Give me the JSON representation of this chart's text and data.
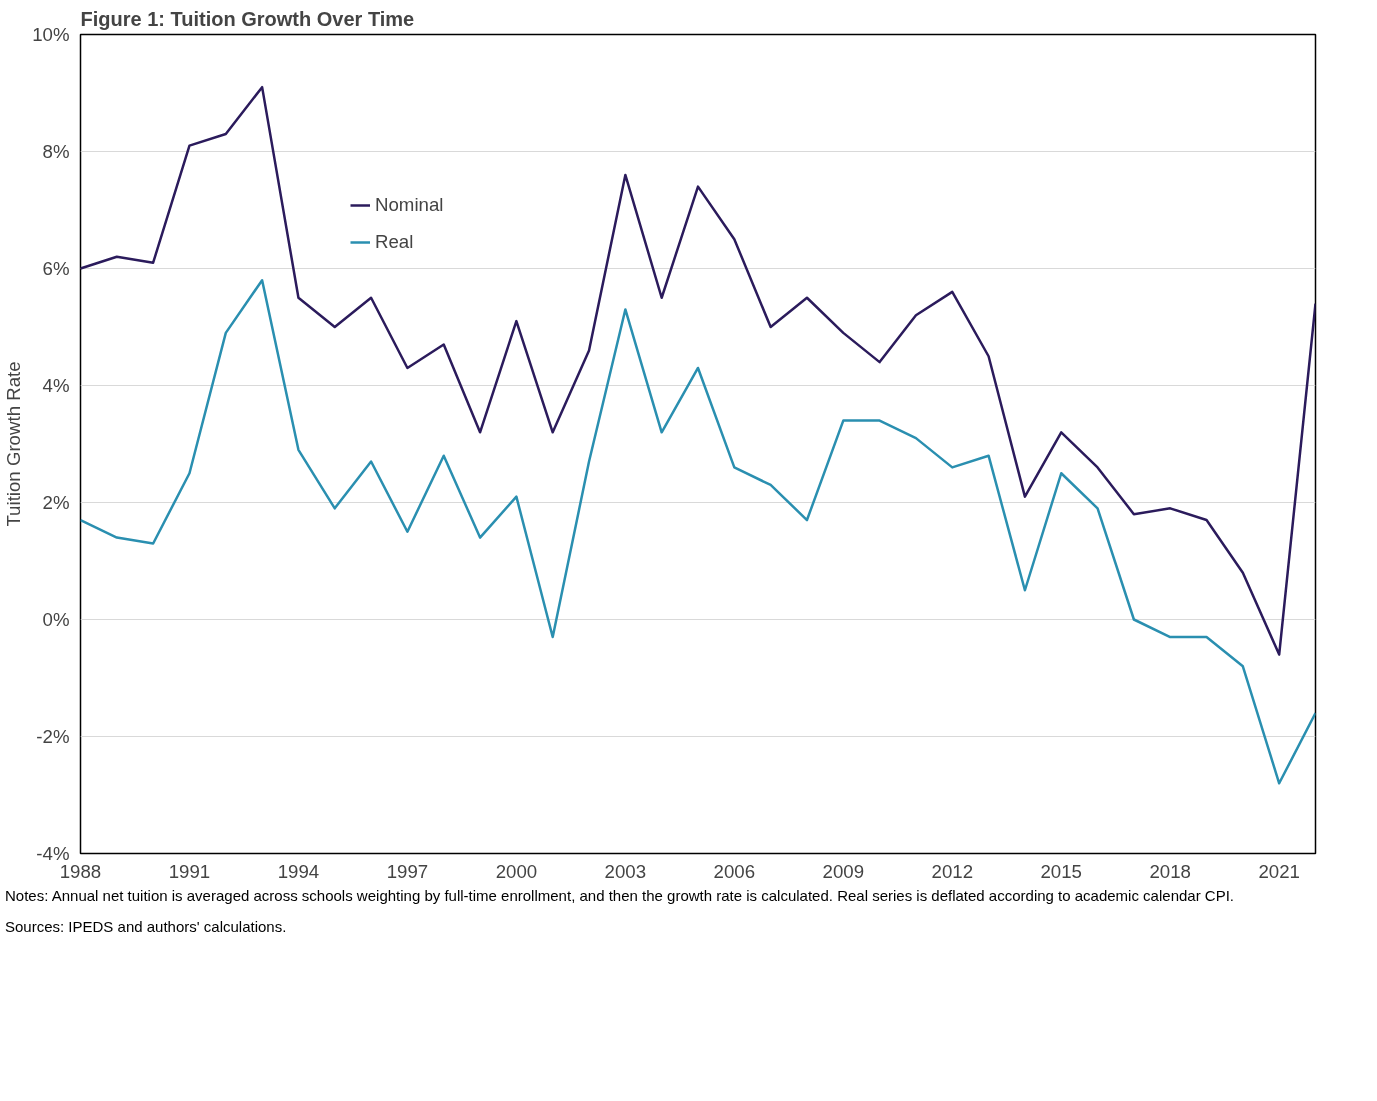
{
  "chart_data": {
    "type": "line",
    "title": "Figure 1: Tuition Growth Over Time",
    "ylabel": "Tuition Growth Rate",
    "x": [
      1988,
      1989,
      1990,
      1991,
      1992,
      1993,
      1994,
      1995,
      1996,
      1997,
      1998,
      1999,
      2000,
      2001,
      2002,
      2003,
      2004,
      2005,
      2006,
      2007,
      2008,
      2009,
      2010,
      2011,
      2012,
      2013,
      2014,
      2015,
      2016,
      2017,
      2018,
      2019,
      2020,
      2021,
      2022
    ],
    "series": [
      {
        "name": "Nominal",
        "color": "#2b1b5c",
        "values": [
          6.0,
          6.2,
          6.1,
          8.1,
          8.3,
          9.1,
          5.5,
          5.0,
          5.5,
          4.3,
          4.7,
          3.2,
          5.1,
          3.2,
          4.6,
          7.6,
          5.5,
          7.4,
          6.5,
          5.0,
          5.5,
          4.9,
          4.4,
          5.2,
          5.6,
          4.5,
          2.1,
          3.2,
          2.6,
          1.8,
          1.9,
          1.7,
          0.8,
          -0.6,
          5.4
        ]
      },
      {
        "name": "Real",
        "color": "#2a8fb0",
        "values": [
          1.7,
          1.4,
          1.3,
          2.5,
          4.9,
          5.8,
          2.9,
          1.9,
          2.7,
          1.5,
          2.8,
          1.4,
          2.1,
          -0.3,
          2.7,
          5.3,
          3.2,
          4.3,
          2.6,
          2.3,
          1.7,
          3.4,
          3.4,
          3.1,
          2.6,
          2.8,
          0.5,
          2.5,
          1.9,
          0.0,
          -0.3,
          -0.3,
          -0.8,
          -2.8,
          -1.6
        ]
      }
    ],
    "xlim": [
      1988,
      2022
    ],
    "xticks": [
      1988,
      1991,
      1994,
      1997,
      2000,
      2003,
      2006,
      2009,
      2012,
      2015,
      2018,
      2021
    ],
    "ylim": [
      -4,
      10
    ],
    "yticks": [
      {
        "value": -4,
        "label": "-4%"
      },
      {
        "value": -2,
        "label": "-2%"
      },
      {
        "value": 0,
        "label": "0%"
      },
      {
        "value": 2,
        "label": "2%"
      },
      {
        "value": 4,
        "label": "4%"
      },
      {
        "value": 6,
        "label": "6%"
      },
      {
        "value": 8,
        "label": "8%"
      },
      {
        "value": 10,
        "label": "10%"
      }
    ],
    "grid": "y",
    "legend": "top left",
    "line_style": "solid",
    "annotations": [
      "Notes: Annual net tuition is averaged across schools weighting by full-time enrollment, and then the growth rate is calculated. Real series is deflated according to academic calendar CPI.",
      "Sources: IPEDS and authors' calculations."
    ]
  }
}
